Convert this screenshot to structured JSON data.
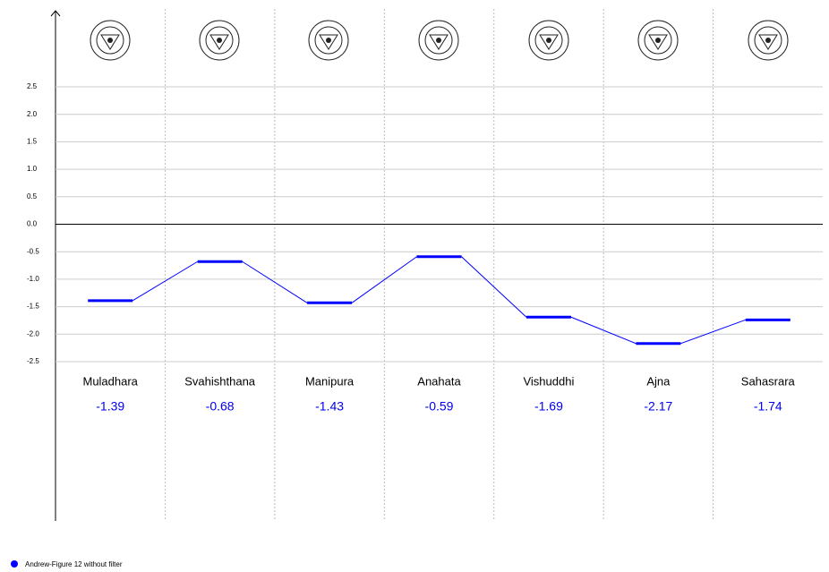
{
  "chart_data": {
    "type": "line",
    "categories": [
      "Muladhara",
      "Svahishthana",
      "Manipura",
      "Anahata",
      "Vishuddhi",
      "Ajna",
      "Sahasrara"
    ],
    "series": [
      {
        "name": "Andrew-Figure 12 without filter",
        "color": "#0000ff",
        "values": [
          -1.39,
          -0.68,
          -1.43,
          -0.59,
          -1.69,
          -2.17,
          -1.74
        ]
      }
    ],
    "ylim": [
      -2.5,
      2.5
    ],
    "yticks": [
      -2.5,
      {
        "value": -2,
        "label": "-2.0"
      },
      -1.5,
      {
        "value": -1,
        "label": "-1.0"
      },
      -0.5,
      {
        "value": 0,
        "label": "0.0"
      },
      0.5,
      {
        "value": 1,
        "label": "1.0"
      },
      1.5,
      {
        "value": 2,
        "label": "2.0"
      },
      2.5
    ],
    "grid": true
  }
}
